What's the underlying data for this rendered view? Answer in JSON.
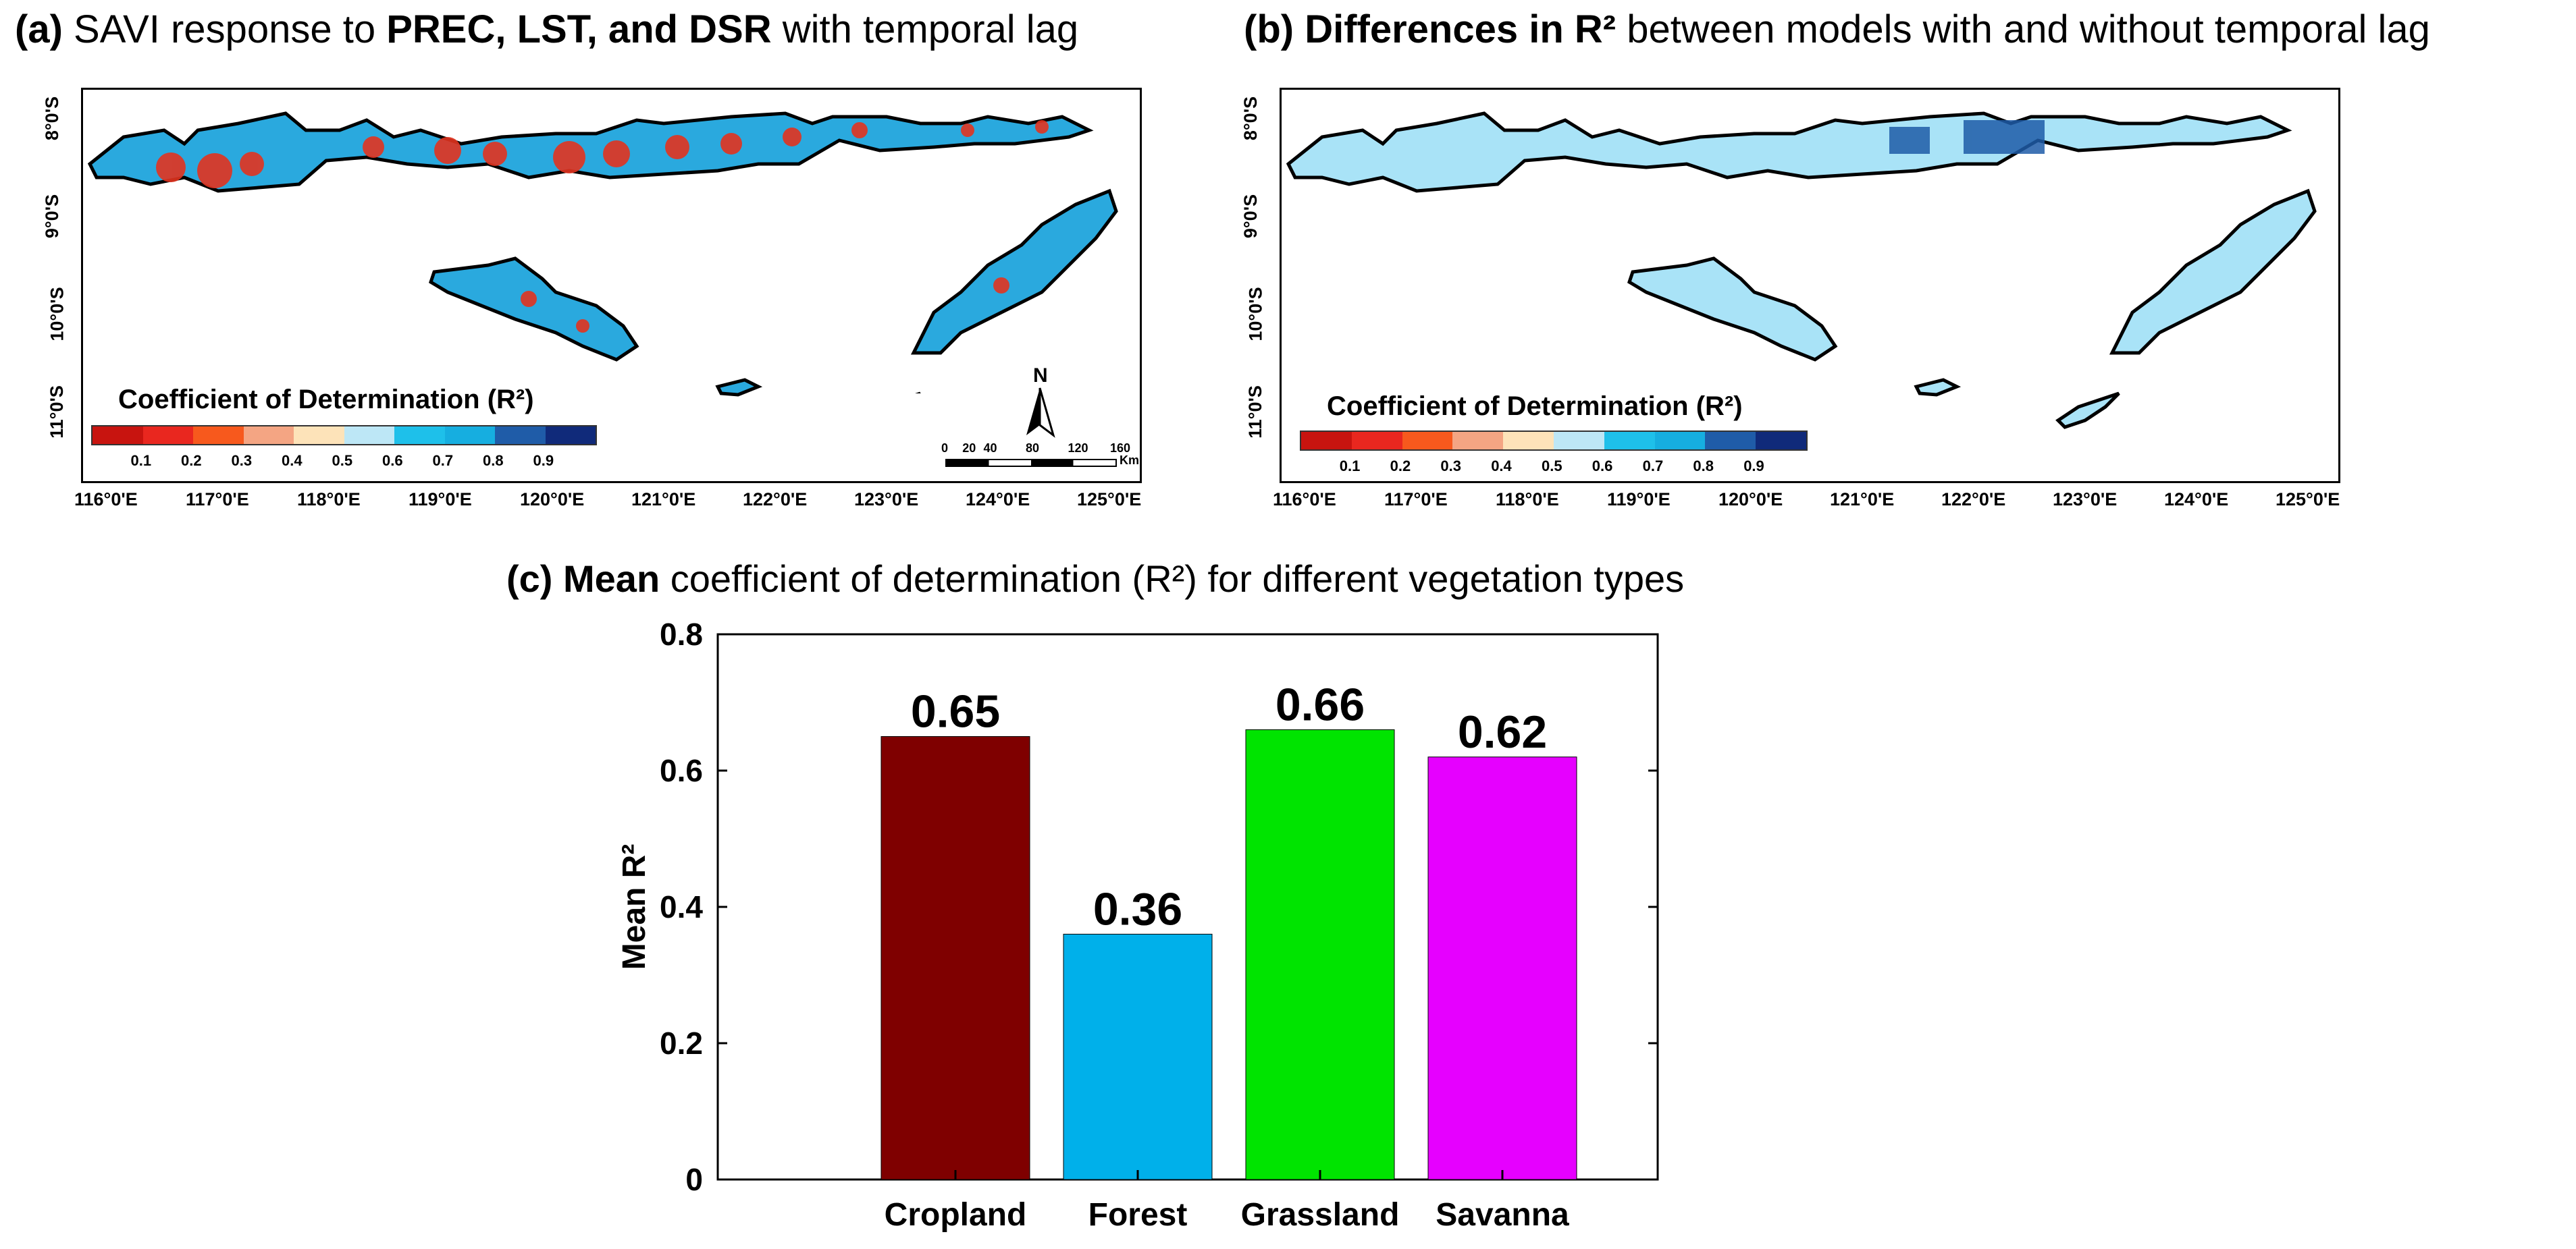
{
  "panel_a": {
    "label": "(a)",
    "title_pre": "SAVI response to",
    "title_bold": "PREC, LST, and DSR",
    "title_post": "with temporal lag",
    "legend_title": "Coefficient of Determination (R²)",
    "legend_ticks": [
      "0.1",
      "0.2",
      "0.3",
      "0.4",
      "0.5",
      "0.6",
      "0.7",
      "0.8",
      "0.9"
    ],
    "legend_colors": [
      "#c8140f",
      "#e9271f",
      "#f7591d",
      "#f4a583",
      "#fde3b9",
      "#bde7f6",
      "#1ec0ea",
      "#16aee0",
      "#1f5ca8",
      "#102a7a"
    ],
    "north_label": "N",
    "scale_labels": [
      "0",
      "20",
      "40",
      "80",
      "120",
      "160"
    ],
    "scale_unit": "Km"
  },
  "panel_b": {
    "label": "(b)",
    "title_bold": "Differences in R²",
    "title_post": "between models with and without temporal lag",
    "legend_title": "Coefficient of Determination (R²)",
    "legend_ticks": [
      "0.1",
      "0.2",
      "0.3",
      "0.4",
      "0.5",
      "0.6",
      "0.7",
      "0.8",
      "0.9"
    ],
    "legend_colors": [
      "#c8140f",
      "#e9271f",
      "#f7591d",
      "#f4a583",
      "#fde3b9",
      "#bde7f6",
      "#1ec0ea",
      "#16aee0",
      "#1f5ca8",
      "#102a7a"
    ]
  },
  "map_axes": {
    "lon_labels": [
      "116°0'E",
      "117°0'E",
      "118°0'E",
      "119°0'E",
      "120°0'E",
      "121°0'E",
      "122°0'E",
      "123°0'E",
      "124°0'E",
      "125°0'E"
    ],
    "lat_labels": [
      "8°0'S",
      "9°0'S",
      "10°0'S",
      "11°0'S"
    ]
  },
  "panel_c": {
    "label": "(c)",
    "title_bold": "Mean",
    "title_post": "coefficient of determination (R²)  for different vegetation types"
  },
  "chart_data": {
    "type": "bar",
    "categories": [
      "Cropland",
      "Forest",
      "Grassland",
      "Savanna"
    ],
    "values": [
      0.65,
      0.36,
      0.66,
      0.62
    ],
    "value_labels": [
      "0.65",
      "0.36",
      "0.66",
      "0.62"
    ],
    "colors": [
      "#7f0000",
      "#00b0ea",
      "#00e400",
      "#e600ff"
    ],
    "title": "Mean coefficient of determination (R²) for different vegetation types",
    "xlabel": "",
    "ylabel": "Mean R²",
    "ylim": [
      0,
      0.8
    ],
    "yticks": [
      0,
      0.2,
      0.4,
      0.6,
      0.8
    ],
    "ytick_labels": [
      "0",
      "0.2",
      "0.4",
      "0.6",
      "0.8"
    ],
    "grid": false
  }
}
